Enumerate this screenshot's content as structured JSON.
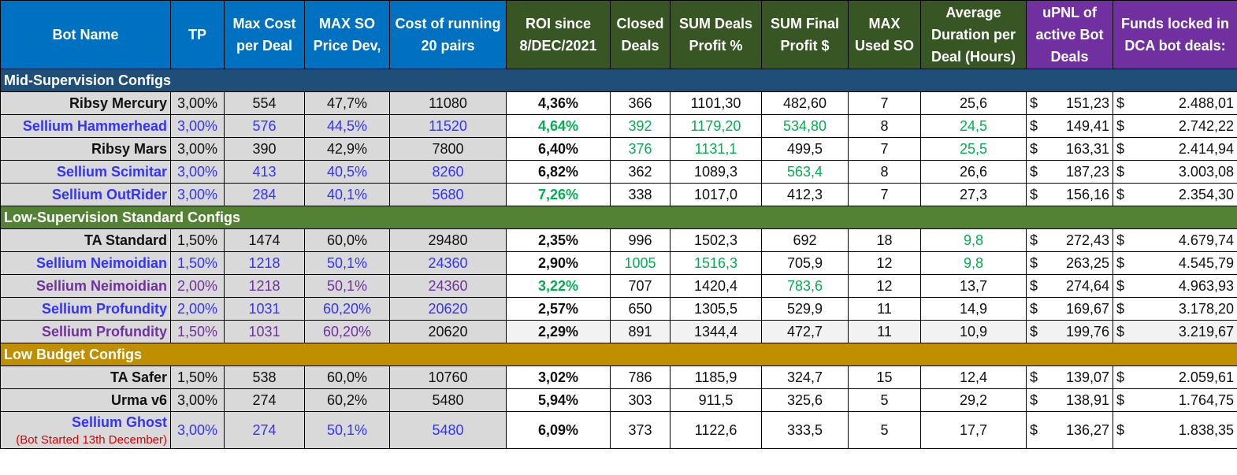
{
  "colors": {
    "header_blue": "#0070c0",
    "header_green": "#375623",
    "header_purple": "#7030a0",
    "section_mid": "#1f4e79",
    "section_low": "#548235",
    "section_budget": "#bf8f00",
    "text_black": "#111111",
    "text_blue": "#3333ff",
    "text_purple": "#7030a0",
    "text_green": "#00b050",
    "text_red": "#e00000"
  },
  "headers": [
    "Bot Name",
    "TP",
    "Max Cost per Deal",
    "MAX SO Price Dev,",
    "Cost of running 20 pairs",
    "ROI since 8/DEC/2021",
    "Closed Deals",
    "SUM Deals Profit %",
    "SUM Final Profit $",
    "MAX Used SO",
    "Average Duration per Deal (Hours)",
    "uPNL of active Bot Deals",
    "Funds locked in DCA bot deals:"
  ],
  "currency_symbol": "$",
  "sections": [
    {
      "title": "Mid-Supervision Configs",
      "rows": [
        {
          "name": "Ribsy Mercury",
          "tp": "3,00%",
          "max_cost": "554",
          "max_so": "47,7%",
          "cost20": "11080",
          "roi": "4,36%",
          "closed": "366",
          "sum_pct": "1101,30",
          "sum_usd": "482,60",
          "max_used_so": "7",
          "avg_dur": "25,6",
          "upnl": "151,23",
          "funds": "2.488,01"
        },
        {
          "name": "Sellium Hammerhead",
          "tp": "3,00%",
          "max_cost": "576",
          "max_so": "44,5%",
          "cost20": "11520",
          "roi": "4,64%",
          "closed": "392",
          "sum_pct": "1179,20",
          "sum_usd": "534,80",
          "max_used_so": "8",
          "avg_dur": "24,5",
          "upnl": "149,41",
          "funds": "2.742,22"
        },
        {
          "name": "Ribsy Mars",
          "tp": "3,00%",
          "max_cost": "390",
          "max_so": "42,9%",
          "cost20": "7800",
          "roi": "6,40%",
          "closed": "376",
          "sum_pct": "1131,1",
          "sum_usd": "499,5",
          "max_used_so": "7",
          "avg_dur": "25,5",
          "upnl": "163,31",
          "funds": "2.414,94"
        },
        {
          "name": "Sellium Scimitar",
          "tp": "3,00%",
          "max_cost": "413",
          "max_so": "40,5%",
          "cost20": "8260",
          "roi": "6,82%",
          "closed": "362",
          "sum_pct": "1089,3",
          "sum_usd": "563,4",
          "max_used_so": "8",
          "avg_dur": "26,6",
          "upnl": "187,23",
          "funds": "3.003,08"
        },
        {
          "name": "Sellium OutRider",
          "tp": "3,00%",
          "max_cost": "284",
          "max_so": "40,1%",
          "cost20": "5680",
          "roi": "7,26%",
          "closed": "338",
          "sum_pct": "1017,0",
          "sum_usd": "412,3",
          "max_used_so": "7",
          "avg_dur": "27,3",
          "upnl": "156,16",
          "funds": "2.354,30"
        }
      ]
    },
    {
      "title": "Low-Supervision Standard Configs",
      "rows": [
        {
          "name": "TA Standard",
          "tp": "1,50%",
          "max_cost": "1474",
          "max_so": "60,0%",
          "cost20": "29480",
          "roi": "2,35%",
          "closed": "996",
          "sum_pct": "1502,3",
          "sum_usd": "692",
          "max_used_so": "18",
          "avg_dur": "9,8",
          "upnl": "272,43",
          "funds": "4.679,74"
        },
        {
          "name": "Sellium Neimoidian",
          "tp": "1,50%",
          "max_cost": "1218",
          "max_so": "50,1%",
          "cost20": "24360",
          "roi": "2,90%",
          "closed": "1005",
          "sum_pct": "1516,3",
          "sum_usd": "705,9",
          "max_used_so": "12",
          "avg_dur": "9,8",
          "upnl": "263,25",
          "funds": "4.545,79"
        },
        {
          "name": "Sellium Neimoidian",
          "tp": "2,00%",
          "max_cost": "1218",
          "max_so": "50,1%",
          "cost20": "24360",
          "roi": "3,22%",
          "closed": "707",
          "sum_pct": "1420,4",
          "sum_usd": "783,6",
          "max_used_so": "12",
          "avg_dur": "13,7",
          "upnl": "274,64",
          "funds": "4.963,93"
        },
        {
          "name": "Sellium Profundity",
          "tp": "2,00%",
          "max_cost": "1031",
          "max_so": "60,20%",
          "cost20": "20620",
          "roi": "2,57%",
          "closed": "650",
          "sum_pct": "1305,5",
          "sum_usd": "529,9",
          "max_used_so": "11",
          "avg_dur": "14,9",
          "upnl": "169,67",
          "funds": "3.178,20"
        },
        {
          "name": "Sellium Profundity",
          "tp": "1,50%",
          "max_cost": "1031",
          "max_so": "60,20%",
          "cost20": "20620",
          "roi": "2,29%",
          "closed": "891",
          "sum_pct": "1344,4",
          "sum_usd": "472,7",
          "max_used_so": "11",
          "avg_dur": "10,9",
          "upnl": "199,76",
          "funds": "3.219,67"
        }
      ]
    },
    {
      "title": "Low Budget Configs",
      "rows": [
        {
          "name": "TA Safer",
          "tp": "1,50%",
          "max_cost": "538",
          "max_so": "60,0%",
          "cost20": "10760",
          "roi": "3,02%",
          "closed": "786",
          "sum_pct": "1185,9",
          "sum_usd": "324,7",
          "max_used_so": "15",
          "avg_dur": "12,4",
          "upnl": "139,07",
          "funds": "2.059,61"
        },
        {
          "name": "Urma v6",
          "tp": "3,00%",
          "max_cost": "274",
          "max_so": "60,2%",
          "cost20": "5480",
          "roi": "5,94%",
          "closed": "303",
          "sum_pct": "911,5",
          "sum_usd": "325,6",
          "max_used_so": "5",
          "avg_dur": "29,2",
          "upnl": "138,91",
          "funds": "1.764,75"
        },
        {
          "name": "Sellium Ghost",
          "note": "(Bot Started 13th December)",
          "tp": "3,00%",
          "max_cost": "274",
          "max_so": "50,1%",
          "cost20": "5480",
          "roi": "6,09%",
          "closed": "373",
          "sum_pct": "1122,6",
          "sum_usd": "333,5",
          "max_used_so": "5",
          "avg_dur": "17,7",
          "upnl": "136,27",
          "funds": "1.838,35"
        }
      ]
    }
  ]
}
